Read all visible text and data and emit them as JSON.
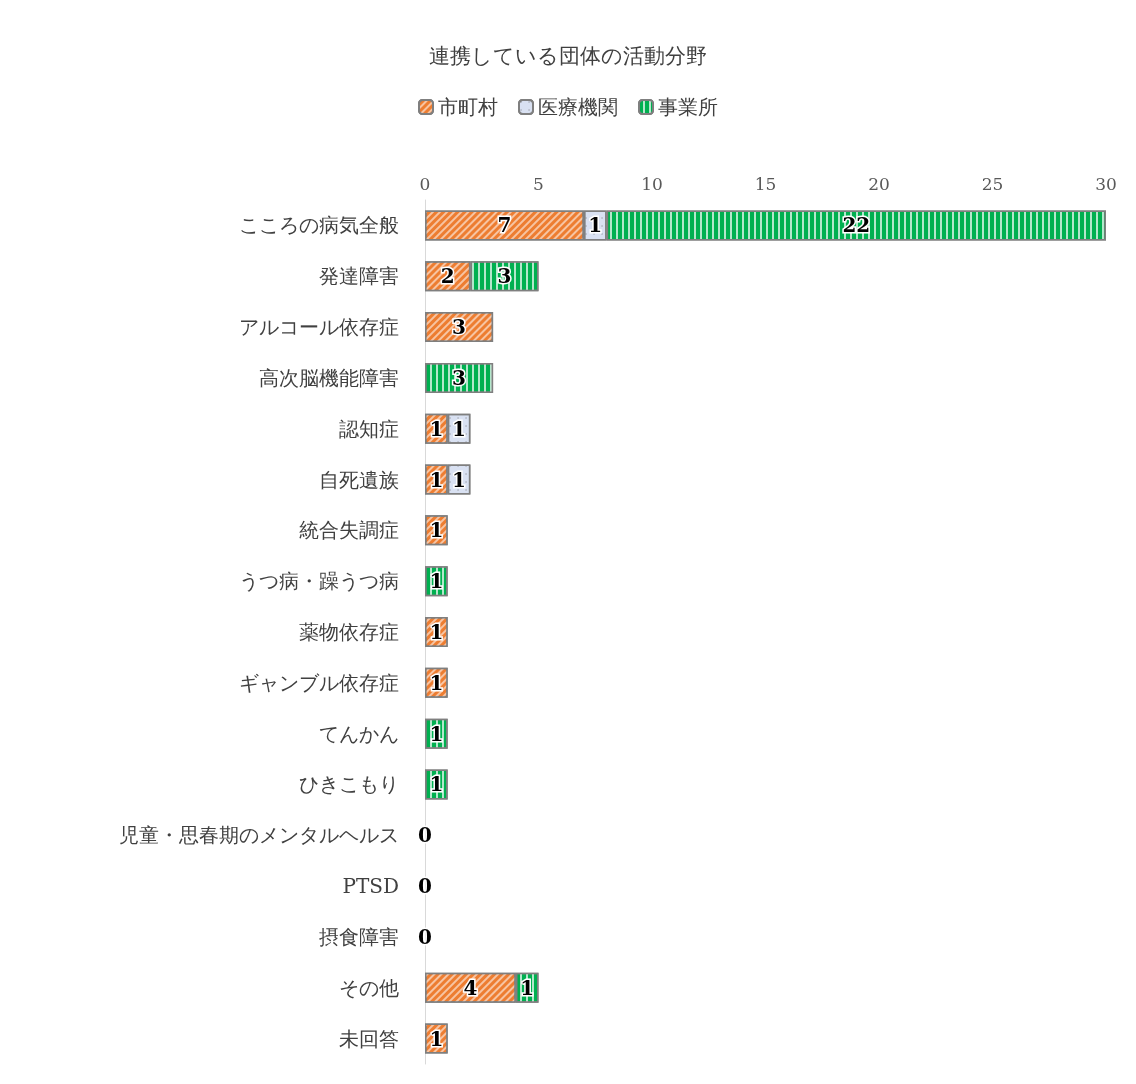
{
  "chart_data": {
    "type": "bar",
    "title": "連携している団体の活動分野",
    "orientation": "horizontal",
    "stacked": true,
    "legend": "top",
    "grid": false,
    "categories": [
      "こころの病気全般",
      "発達障害",
      "アルコール依存症",
      "高次脳機能障害",
      "認知症",
      "自死遺族",
      "統合失調症",
      "うつ病・躁うつ病",
      "薬物依存症",
      "ギャンブル依存症",
      "てんかん",
      "ひきこもり",
      "児童・思春期のメンタルヘルス",
      "PTSD",
      "摂食障害",
      "その他",
      "未回答"
    ],
    "xlim": [
      0,
      30
    ],
    "xticks": [
      0,
      5,
      10,
      15,
      20,
      25,
      30
    ],
    "series": [
      {
        "name": "市町村",
        "color": "#ed7d31",
        "values": [
          7,
          2,
          3,
          0,
          1,
          1,
          1,
          0,
          1,
          1,
          0,
          0,
          0,
          0,
          0,
          4,
          1
        ],
        "value_labels": [
          "7",
          "2",
          "3",
          null,
          "1",
          "1",
          "1",
          null,
          "1",
          "1",
          null,
          null,
          "0",
          "0",
          "0",
          "4",
          "1"
        ]
      },
      {
        "name": "医療機関",
        "color": "#d9e1f2",
        "values": [
          1,
          0,
          0,
          0,
          1,
          1,
          0,
          0,
          0,
          0,
          0,
          0,
          0,
          0,
          0,
          0,
          0
        ],
        "value_labels": [
          "1",
          null,
          null,
          null,
          "1",
          "1",
          null,
          null,
          null,
          null,
          null,
          null,
          null,
          null,
          null,
          null,
          null
        ]
      },
      {
        "name": "事業所",
        "color": "#00b050",
        "values": [
          22,
          3,
          0,
          3,
          0,
          0,
          0,
          1,
          0,
          0,
          1,
          1,
          0,
          0,
          0,
          1,
          0
        ],
        "value_labels": [
          "22",
          "3",
          null,
          "3",
          null,
          null,
          null,
          "1",
          null,
          null,
          "1",
          "1",
          null,
          null,
          null,
          "1",
          null
        ]
      }
    ]
  }
}
